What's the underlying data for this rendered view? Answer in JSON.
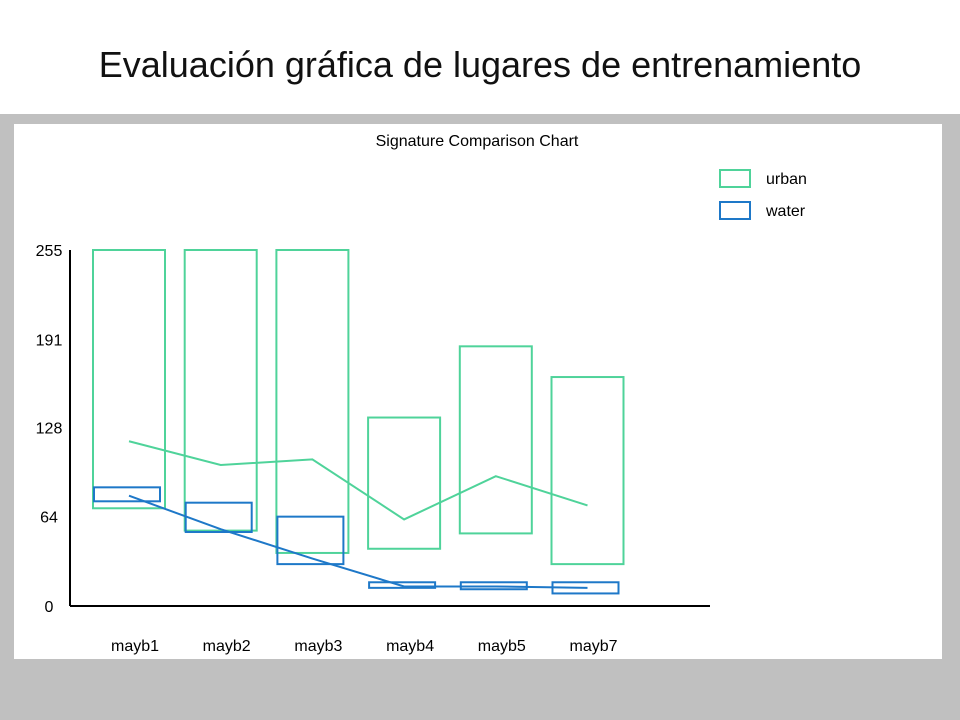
{
  "slide": {
    "title": "Evaluación gráfica de lugares de entrenamiento"
  },
  "chart_data": {
    "type": "bar",
    "subtype": "min-max range boxes with mean line",
    "title": "Signature Comparison Chart",
    "xlabel": "",
    "ylabel": "",
    "categories": [
      "mayb1",
      "mayb2",
      "mayb3",
      "mayb4",
      "mayb5",
      "mayb7"
    ],
    "yticks": [
      "255",
      "191",
      "128",
      "64",
      "0"
    ],
    "ylim": [
      0,
      255
    ],
    "legend_position": "top-right",
    "grid": false,
    "series": [
      {
        "name": "urban",
        "color": "#4fd39a",
        "min": [
          70,
          54,
          38,
          41,
          52,
          30
        ],
        "max": [
          255,
          255,
          255,
          135,
          186,
          164
        ],
        "mean": [
          118,
          101,
          105,
          62,
          93,
          72
        ]
      },
      {
        "name": "water",
        "color": "#1e78c8",
        "min": [
          75,
          53,
          30,
          13,
          12,
          9
        ],
        "max": [
          85,
          74,
          64,
          17,
          17,
          17
        ],
        "mean": [
          79,
          55,
          34,
          14,
          14,
          13
        ]
      }
    ]
  }
}
